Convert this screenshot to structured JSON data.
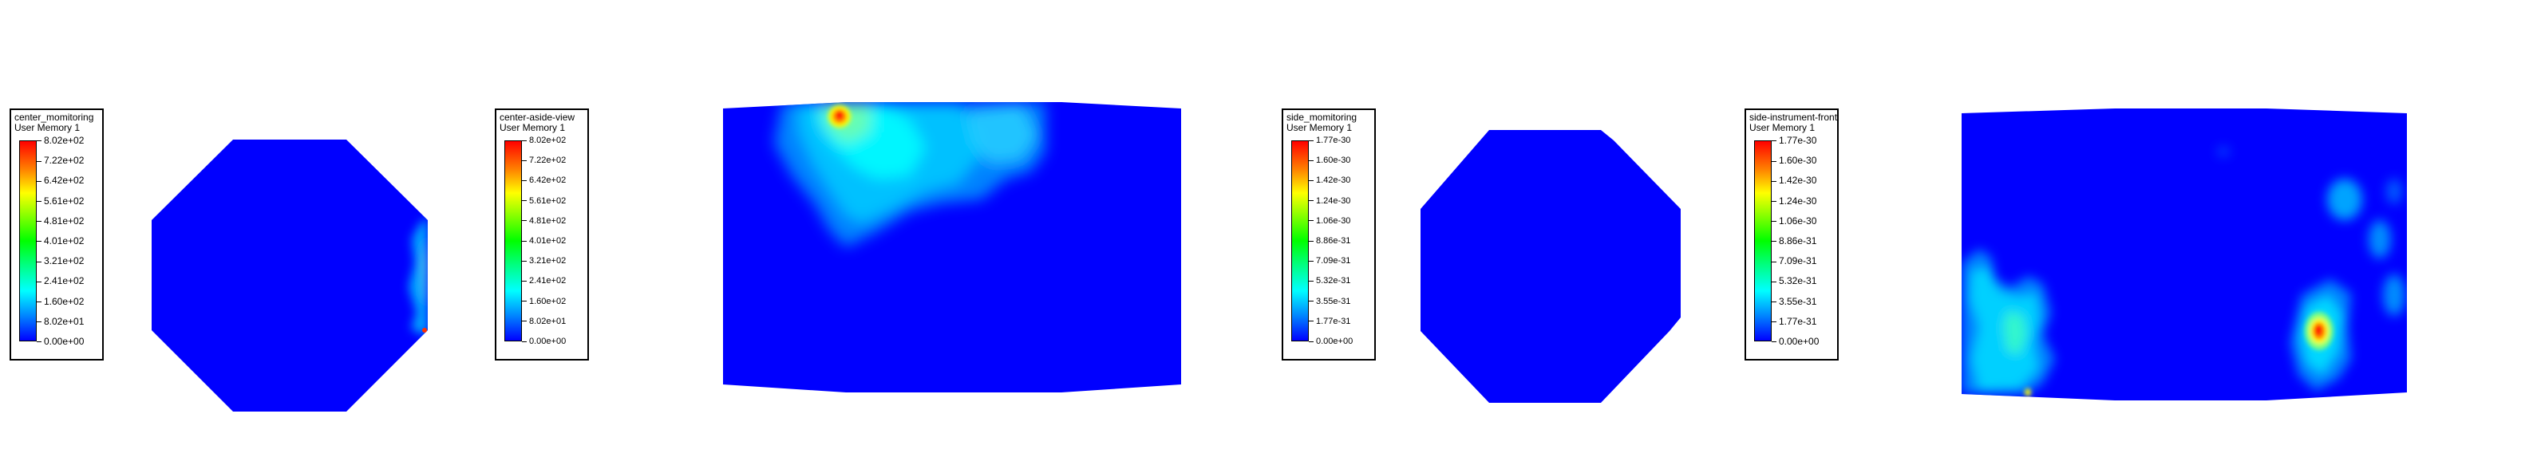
{
  "panels": [
    {
      "title": "center_momitoring",
      "subtitle": "User Memory 1",
      "ticks": [
        "8.02e+02",
        "7.22e+02",
        "6.42e+02",
        "5.61e+02",
        "4.81e+02",
        "4.01e+02",
        "3.21e+02",
        "2.41e+02",
        "1.60e+02",
        "8.02e+01",
        "0.00e+00"
      ]
    },
    {
      "title": "center-aside-view",
      "subtitle": "User Memory 1",
      "ticks": [
        "8.02e+02",
        "7.22e+02",
        "6.42e+02",
        "5.61e+02",
        "4.81e+02",
        "4.01e+02",
        "3.21e+02",
        "2.41e+02",
        "1.60e+02",
        "8.02e+01",
        "0.00e+00"
      ]
    },
    {
      "title": "side_momitoring",
      "subtitle": "User Memory 1",
      "ticks": [
        "1.77e-30",
        "1.60e-30",
        "1.42e-30",
        "1.24e-30",
        "1.06e-30",
        "8.86e-31",
        "7.09e-31",
        "5.32e-31",
        "3.55e-31",
        "1.77e-31",
        "0.00e+00"
      ]
    },
    {
      "title": "side-instrument-front",
      "subtitle": "User Memory 1",
      "ticks": [
        "1.77e-30",
        "1.60e-30",
        "1.42e-30",
        "1.24e-30",
        "1.06e-30",
        "8.86e-31",
        "7.09e-31",
        "5.32e-31",
        "3.55e-31",
        "1.77e-31",
        "0.00e+00"
      ]
    }
  ],
  "colors": {
    "background": "#ffffff",
    "field_base": "#0000ff",
    "scale": [
      "#ff0000",
      "#ff8000",
      "#ffff00",
      "#80ff00",
      "#00ff00",
      "#00ff80",
      "#00ffff",
      "#0080ff",
      "#0000ff"
    ]
  }
}
